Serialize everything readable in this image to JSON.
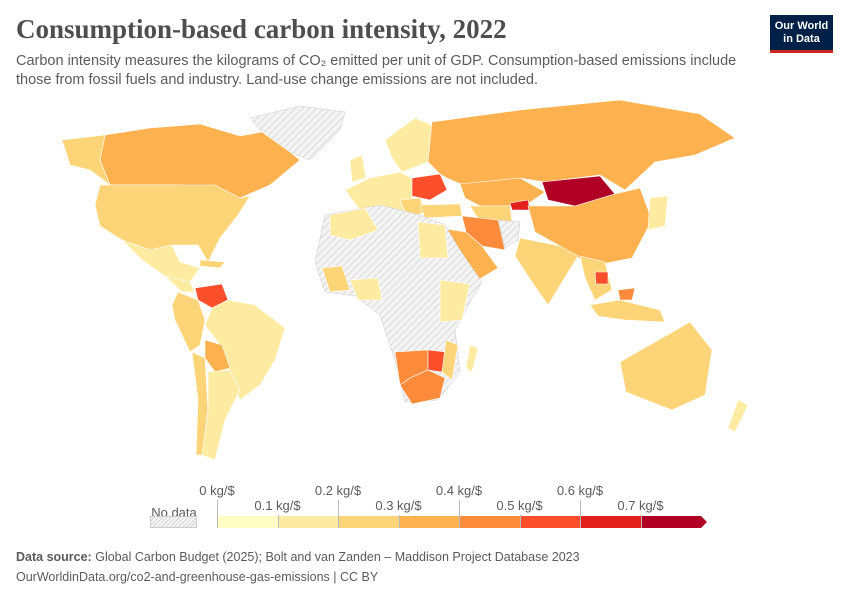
{
  "header": {
    "title": "Consumption-based carbon intensity, 2022",
    "subtitle": "Carbon intensity measures the kilograms of CO₂ emitted per unit of GDP. Consumption-based emissions include those from fossil fuels and industry. Land-use change emissions are not included.",
    "logo": "Our World in Data"
  },
  "chart_data": {
    "type": "map",
    "title": "Consumption-based carbon intensity, 2022",
    "unit": "kg/$",
    "legend": {
      "no_data_label": "No data",
      "ticks": [
        "0 kg/$",
        "0.1 kg/$",
        "0.2 kg/$",
        "0.3 kg/$",
        "0.4 kg/$",
        "0.5 kg/$",
        "0.6 kg/$",
        "0.7 kg/$"
      ],
      "bins": [
        [
          0,
          0.1
        ],
        [
          0.1,
          0.2
        ],
        [
          0.2,
          0.3
        ],
        [
          0.3,
          0.4
        ],
        [
          0.4,
          0.5
        ],
        [
          0.5,
          0.6
        ],
        [
          0.6,
          0.7
        ],
        [
          0.7,
          null
        ]
      ],
      "colors": [
        "#ffffc5",
        "#feeba2",
        "#fdd578",
        "#fdb14f",
        "#fc8c3b",
        "#fb4f2b",
        "#e2201c",
        "#b10026"
      ],
      "no_data_color": "hatched grey"
    }
  },
  "footer": {
    "source_label": "Data source:",
    "source": "Global Carbon Budget (2025); Bolt and van Zanden – Maddison Project Database 2023",
    "url": "OurWorldinData.org/co2-and-greenhouse-gas-emissions | CC BY"
  }
}
